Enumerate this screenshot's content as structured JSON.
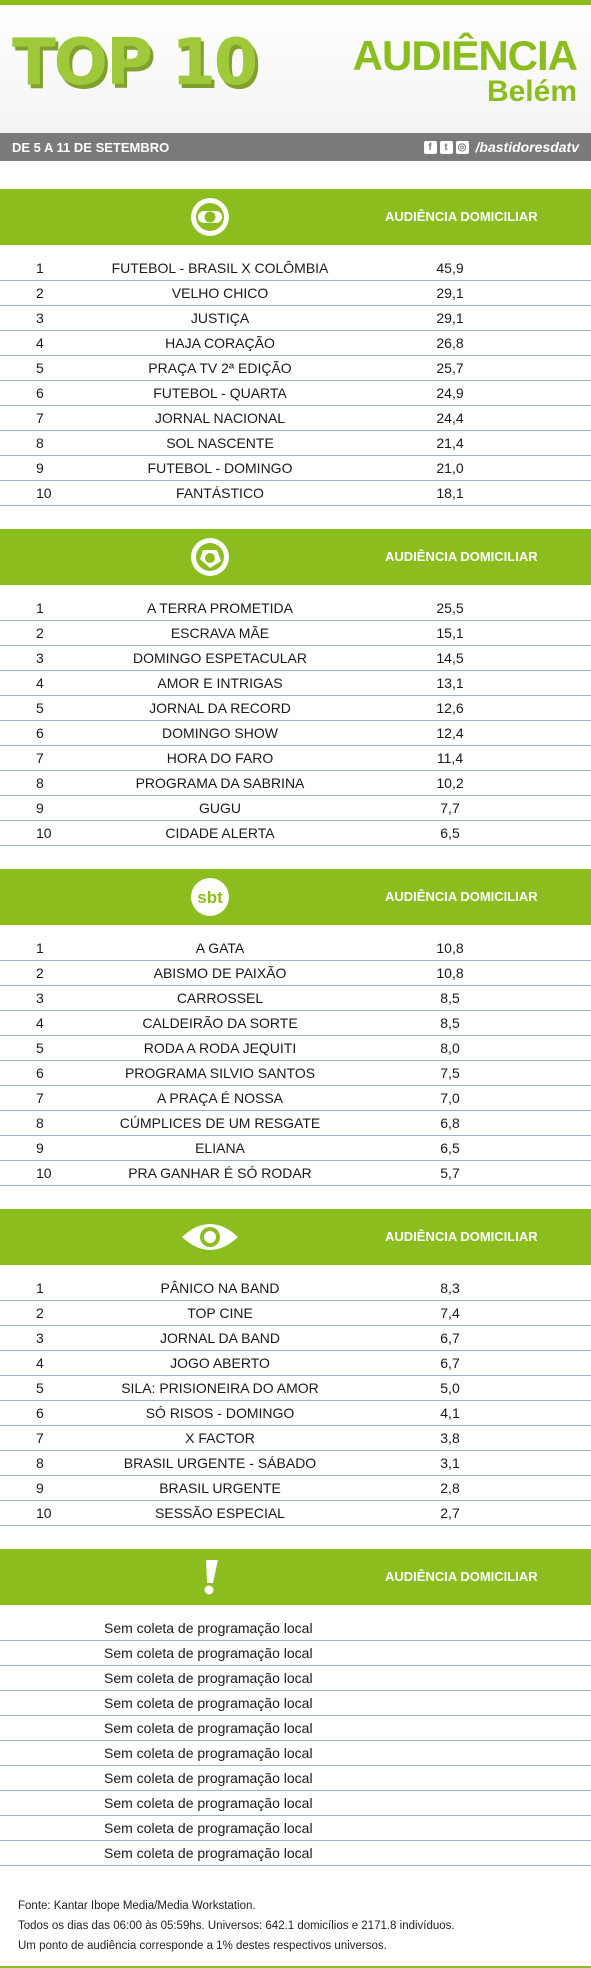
{
  "header": {
    "title_top": "TOP",
    "title_num": "10",
    "aud_line1": "AUDIÊNCIA",
    "aud_line2": "Belém",
    "date_range": "DE 5 A 11 DE SETEMBRO",
    "social_handle": "/bastidoresdatv",
    "accent_color": "#8bbd1e"
  },
  "sections": [
    {
      "network_icon": "globo-logo",
      "label": "AUDIÊNCIA DOMICILIAR",
      "rows": [
        {
          "rank": "1",
          "name": "FUTEBOL - BRASIL X COLÔMBIA",
          "value": "45,9"
        },
        {
          "rank": "2",
          "name": "VELHO CHICO",
          "value": "29,1"
        },
        {
          "rank": "3",
          "name": "JUSTIÇA",
          "value": "29,1"
        },
        {
          "rank": "4",
          "name": "HAJA CORAÇÃO",
          "value": "26,8"
        },
        {
          "rank": "5",
          "name": "PRAÇA TV 2ª EDIÇÃO",
          "value": "25,7"
        },
        {
          "rank": "6",
          "name": "FUTEBOL - QUARTA",
          "value": "24,9"
        },
        {
          "rank": "7",
          "name": "JORNAL NACIONAL",
          "value": "24,4"
        },
        {
          "rank": "8",
          "name": "SOL NASCENTE",
          "value": "21,4"
        },
        {
          "rank": "9",
          "name": "FUTEBOL - DOMINGO",
          "value": "21,0"
        },
        {
          "rank": "10",
          "name": "FANTÁSTICO",
          "value": "18,1"
        }
      ]
    },
    {
      "network_icon": "record-logo",
      "label": "AUDIÊNCIA DOMICILIAR",
      "rows": [
        {
          "rank": "1",
          "name": "A TERRA PROMETIDA",
          "value": "25,5"
        },
        {
          "rank": "2",
          "name": "ESCRAVA MÃE",
          "value": "15,1"
        },
        {
          "rank": "3",
          "name": "DOMINGO ESPETACULAR",
          "value": "14,5"
        },
        {
          "rank": "4",
          "name": "AMOR E INTRIGAS",
          "value": "13,1"
        },
        {
          "rank": "5",
          "name": "JORNAL DA RECORD",
          "value": "12,6"
        },
        {
          "rank": "6",
          "name": "DOMINGO SHOW",
          "value": "12,4"
        },
        {
          "rank": "7",
          "name": "HORA DO FARO",
          "value": "11,4"
        },
        {
          "rank": "8",
          "name": "PROGRAMA DA SABRINA",
          "value": "10,2"
        },
        {
          "rank": "9",
          "name": "GUGU",
          "value": "7,7"
        },
        {
          "rank": "10",
          "name": "CIDADE ALERTA",
          "value": "6,5"
        }
      ]
    },
    {
      "network_icon": "sbt-logo",
      "logo_text": "sbt",
      "label": "AUDIÊNCIA DOMICILIAR",
      "rows": [
        {
          "rank": "1",
          "name": "A GATA",
          "value": "10,8"
        },
        {
          "rank": "2",
          "name": "ABISMO DE PAIXÃO",
          "value": "10,8"
        },
        {
          "rank": "3",
          "name": "CARROSSEL",
          "value": "8,5"
        },
        {
          "rank": "4",
          "name": "CALDEIRÃO DA SORTE",
          "value": "8,5"
        },
        {
          "rank": "5",
          "name": "RODA A RODA JEQUITI",
          "value": "8,0"
        },
        {
          "rank": "6",
          "name": "PROGRAMA SILVIO SANTOS",
          "value": "7,5"
        },
        {
          "rank": "7",
          "name": "A PRAÇA É NOSSA",
          "value": "7,0"
        },
        {
          "rank": "8",
          "name": "CÚMPLICES DE UM RESGATE",
          "value": "6,8"
        },
        {
          "rank": "9",
          "name": "ELIANA",
          "value": "6,5"
        },
        {
          "rank": "10",
          "name": "PRA GANHAR É SÓ RODAR",
          "value": "5,7"
        }
      ]
    },
    {
      "network_icon": "band-logo",
      "label": "AUDIÊNCIA DOMICILIAR",
      "rows": [
        {
          "rank": "1",
          "name": "PÂNICO NA BAND",
          "value": "8,3"
        },
        {
          "rank": "2",
          "name": "TOP CINE",
          "value": "7,4"
        },
        {
          "rank": "3",
          "name": "JORNAL DA BAND",
          "value": "6,7"
        },
        {
          "rank": "4",
          "name": "JOGO ABERTO",
          "value": "6,7"
        },
        {
          "rank": "5",
          "name": "SILA: PRISIONEIRA DO AMOR",
          "value": "5,0"
        },
        {
          "rank": "6",
          "name": "SÓ RISOS - DOMINGO",
          "value": "4,1"
        },
        {
          "rank": "7",
          "name": "X FACTOR",
          "value": "3,8"
        },
        {
          "rank": "8",
          "name": "BRASIL URGENTE - SÁBADO",
          "value": "3,1"
        },
        {
          "rank": "9",
          "name": "BRASIL URGENTE",
          "value": "2,8"
        },
        {
          "rank": "10",
          "name": "SESSÃO ESPECIAL",
          "value": "2,7"
        }
      ]
    },
    {
      "network_icon": "exclamation-icon",
      "label": "AUDIÊNCIA DOMICILIAR",
      "no_local": [
        "Sem coleta de programação local",
        "Sem coleta de programação local",
        "Sem coleta de programação local",
        "Sem coleta de programação local",
        "Sem coleta de programação local",
        "Sem coleta de programação local",
        "Sem coleta de programação local",
        "Sem coleta de programação local",
        "Sem coleta de programação local",
        "Sem coleta de programação local"
      ]
    }
  ],
  "footer": {
    "line1": "Fonte: Kantar Ibope Media/Media Workstation.",
    "line2": "Todos os dias das 06:00 às 05:59hs. Universos: 642.1 domicílios e 2171.8 indivíduos.",
    "line3": "Um ponto de audiência corresponde a 1% destes respectivos universos."
  }
}
